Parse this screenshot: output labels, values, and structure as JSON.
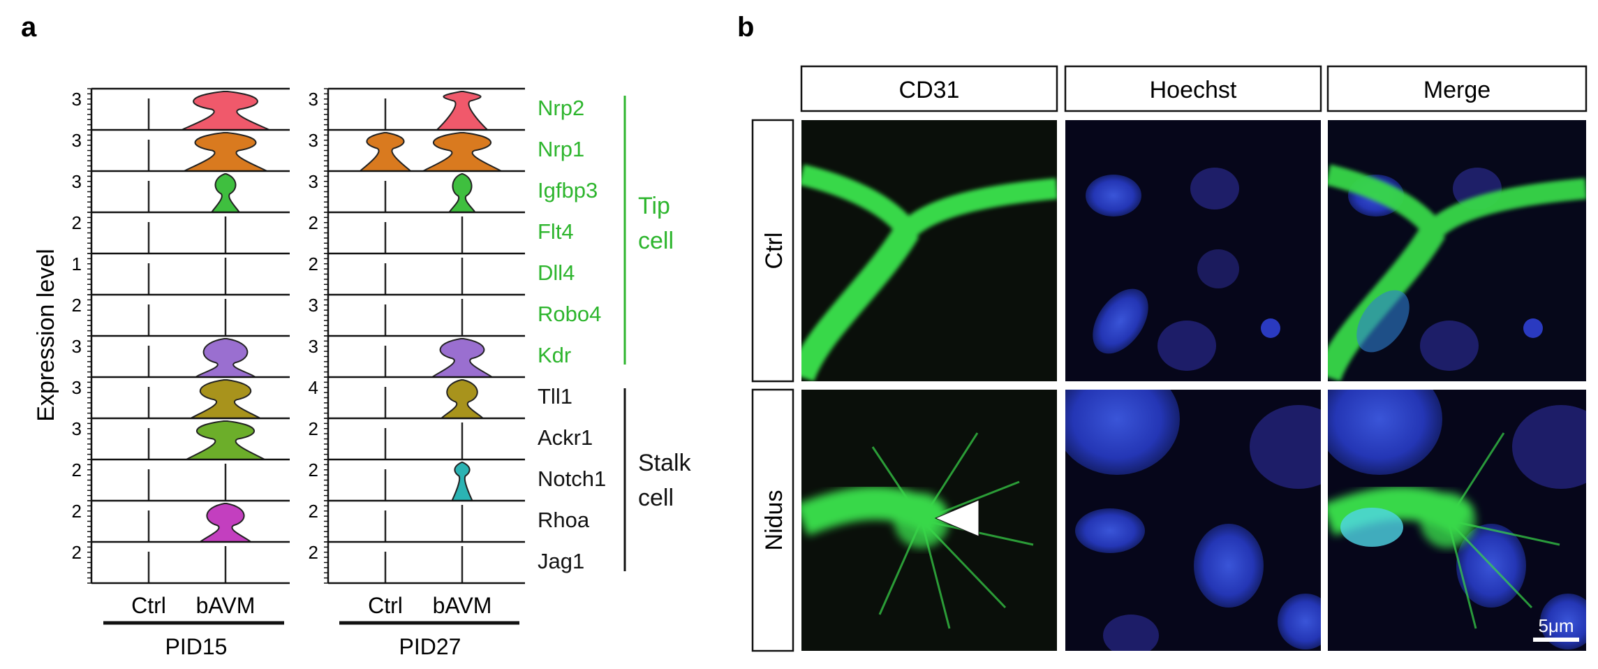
{
  "panel_a": {
    "label": "a",
    "y_axis_label": "Expression level",
    "x_categories": [
      "Ctrl",
      "bAVM"
    ],
    "groups": [
      {
        "name": "PID15",
        "tick_labels": [
          "3",
          "3",
          "3",
          "2",
          "1",
          "2",
          "3",
          "3",
          "3",
          "2",
          "2",
          "2"
        ]
      },
      {
        "name": "PID27",
        "tick_labels": [
          "3",
          "3",
          "3",
          "2",
          "2",
          "3",
          "3",
          "4",
          "2",
          "2",
          "2",
          "2"
        ]
      }
    ],
    "genes": [
      {
        "name": "Nrp2",
        "group": "tip",
        "color": "#f0596b"
      },
      {
        "name": "Nrp1",
        "group": "tip",
        "color": "#d97a1f"
      },
      {
        "name": "Igfbp3",
        "group": "tip",
        "color": "#3fbf3f"
      },
      {
        "name": "Flt4",
        "group": "tip",
        "color": "#2f9e2f"
      },
      {
        "name": "Dll4",
        "group": "tip",
        "color": "#2f9e2f"
      },
      {
        "name": "Robo4",
        "group": "tip",
        "color": "#2f9e2f"
      },
      {
        "name": "Kdr",
        "group": "tip",
        "color": "#9a6fd0"
      },
      {
        "name": "Tll1",
        "group": "stalk",
        "color": "#a8931c"
      },
      {
        "name": "Ackr1",
        "group": "stalk",
        "color": "#6cae2a"
      },
      {
        "name": "Notch1",
        "group": "stalk",
        "color": "#2bb3b3"
      },
      {
        "name": "Rhoa",
        "group": "stalk",
        "color": "#c33fbf"
      },
      {
        "name": "Jag1",
        "group": "stalk",
        "color": "#444444"
      }
    ],
    "tip_label_line1": "Tip",
    "tip_label_line2": "cell",
    "stalk_label_line1": "Stalk",
    "stalk_label_line2": "cell",
    "tip_color": "#2db52d",
    "stalk_color": "#111111"
  },
  "panel_b": {
    "label": "b",
    "columns": [
      "CD31",
      "Hoechst",
      "Merge"
    ],
    "rows": [
      "Ctrl",
      "Nidus"
    ],
    "scale_bar": "5μm"
  }
}
